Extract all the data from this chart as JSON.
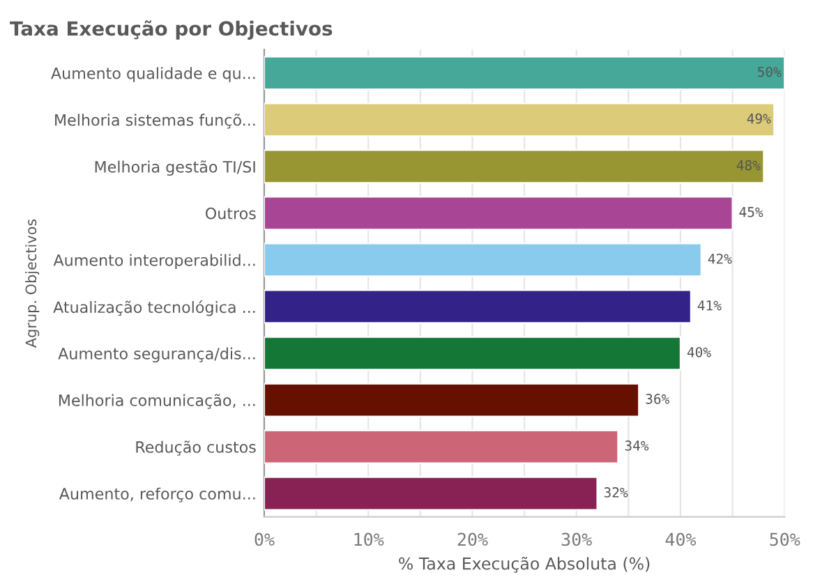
{
  "chart_data": {
    "type": "bar",
    "orientation": "horizontal",
    "title": "Taxa Execução por Objectivos",
    "xlabel": "% Taxa Execução Absoluta (%)",
    "ylabel": "Agrup. Objectivos",
    "categories": [
      "Aumento qualidade e qu...",
      "Melhoria sistemas funçõ...",
      "Melhoria gestão TI/SI",
      "Outros",
      "Aumento interoperabilid...",
      "Atualização tecnológica ...",
      "Aumento segurança/dis...",
      "Melhoria comunicação, ...",
      "Redução custos",
      "Aumento, reforço comu..."
    ],
    "values": [
      50,
      49,
      48,
      45,
      42,
      41,
      40,
      36,
      34,
      32
    ],
    "value_labels": [
      "50%",
      "49%",
      "48%",
      "45%",
      "42%",
      "41%",
      "40%",
      "36%",
      "34%",
      "32%"
    ],
    "colors": [
      "#45a899",
      "#dccb78",
      "#979632",
      "#a84595",
      "#88cbec",
      "#332288",
      "#157735",
      "#661100",
      "#cc6677",
      "#882255"
    ],
    "xlim": [
      0,
      50
    ],
    "xticks": [
      {
        "value": 0,
        "label": "0%"
      },
      {
        "value": 5,
        "label": null
      },
      {
        "value": 10,
        "label": "10%"
      },
      {
        "value": 15,
        "label": null
      },
      {
        "value": 20,
        "label": "20%"
      },
      {
        "value": 25,
        "label": null
      },
      {
        "value": 30,
        "label": "30%"
      },
      {
        "value": 35,
        "label": null
      },
      {
        "value": 40,
        "label": "40%"
      },
      {
        "value": 45,
        "label": null
      },
      {
        "value": 50,
        "label": "50%"
      }
    ],
    "grid": "x",
    "legend": false
  }
}
